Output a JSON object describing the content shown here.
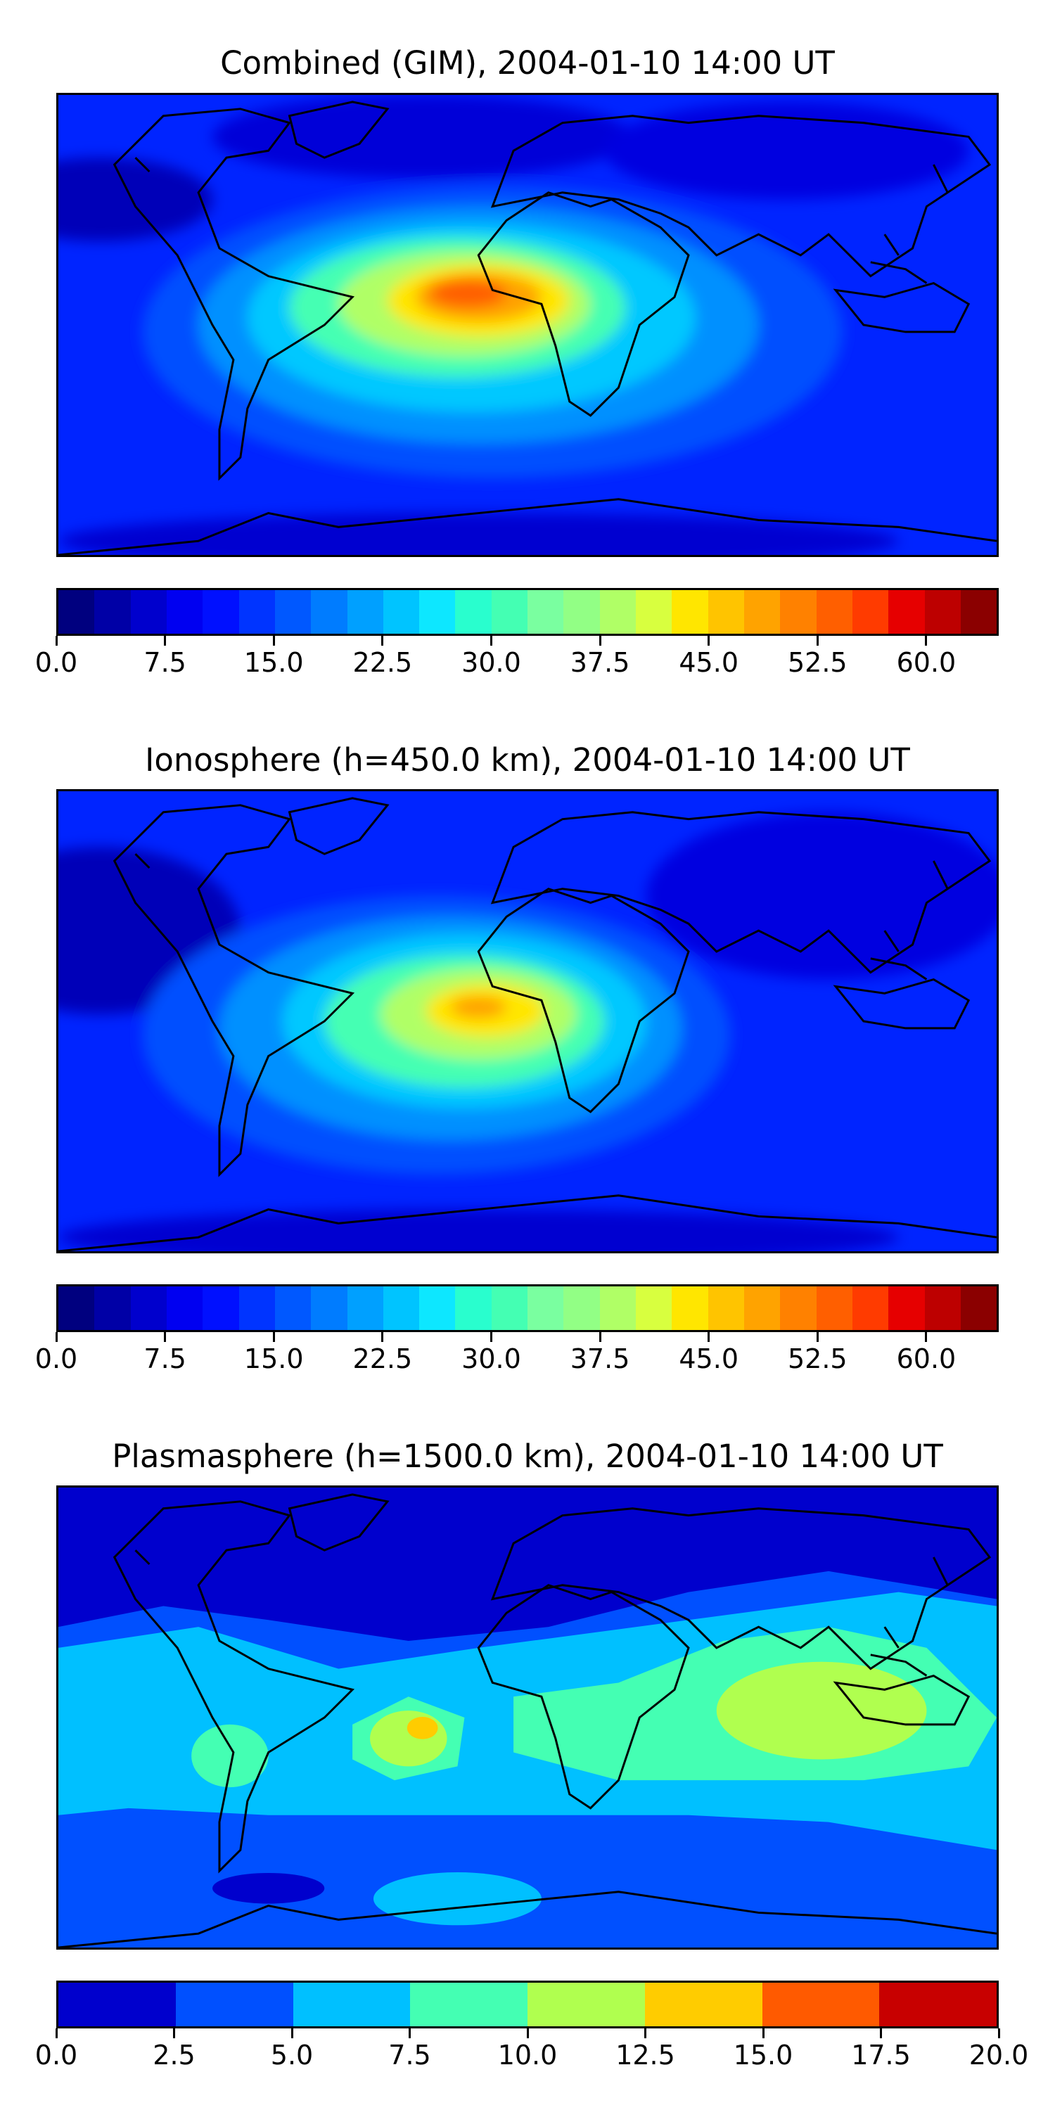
{
  "panels": [
    {
      "title": "Combined (GIM), 2004-01-10 14:00 UT",
      "colorbar": {
        "min": 0.0,
        "max": 65.0,
        "levels": 26,
        "tick_labels": [
          "0.0",
          "7.5",
          "15.0",
          "22.5",
          "30.0",
          "37.5",
          "45.0",
          "52.5",
          "60.0"
        ],
        "tick_values": [
          0,
          7.5,
          15,
          22.5,
          30,
          37.5,
          45,
          52.5,
          60
        ],
        "colors": [
          "#00007f",
          "#0000a6",
          "#0000cd",
          "#0000f1",
          "#0010ff",
          "#0034ff",
          "#0058ff",
          "#007cff",
          "#00a0ff",
          "#00c4ff",
          "#0de7ff",
          "#29fece",
          "#44ffb3",
          "#7affa0",
          "#92ff85",
          "#b0ff66",
          "#d8ff3f",
          "#ffe600",
          "#ffc400",
          "#ffa300",
          "#ff8100",
          "#ff5f00",
          "#ff3b00",
          "#e60000",
          "#bd0000",
          "#8b0000"
        ]
      }
    },
    {
      "title": "Ionosphere  (h=450.0 km), 2004-01-10 14:00 UT",
      "colorbar": {
        "min": 0.0,
        "max": 65.0,
        "levels": 26,
        "tick_labels": [
          "0.0",
          "7.5",
          "15.0",
          "22.5",
          "30.0",
          "37.5",
          "45.0",
          "52.5",
          "60.0"
        ],
        "tick_values": [
          0,
          7.5,
          15,
          22.5,
          30,
          37.5,
          45,
          52.5,
          60
        ],
        "colors": [
          "#00007f",
          "#0000a6",
          "#0000cd",
          "#0000f1",
          "#0010ff",
          "#0034ff",
          "#0058ff",
          "#007cff",
          "#00a0ff",
          "#00c4ff",
          "#0de7ff",
          "#29fece",
          "#44ffb3",
          "#7affa0",
          "#92ff85",
          "#b0ff66",
          "#d8ff3f",
          "#ffe600",
          "#ffc400",
          "#ffa300",
          "#ff8100",
          "#ff5f00",
          "#ff3b00",
          "#e60000",
          "#bd0000",
          "#8b0000"
        ]
      }
    },
    {
      "title": "Plasmasphere (h=1500.0 km), 2004-01-10 14:00 UT",
      "colorbar": {
        "min": 0.0,
        "max": 20.0,
        "levels": 8,
        "tick_labels": [
          "0.0",
          "2.5",
          "5.0",
          "7.5",
          "10.0",
          "12.5",
          "15.0",
          "17.5",
          "20.0"
        ],
        "tick_values": [
          0,
          2.5,
          5,
          7.5,
          10,
          12.5,
          15,
          17.5,
          20
        ],
        "colors": [
          "#0000cd",
          "#0050ff",
          "#00c0ff",
          "#44ffb3",
          "#b0ff4f",
          "#ffcc00",
          "#ff5a00",
          "#c80000"
        ]
      }
    }
  ]
}
